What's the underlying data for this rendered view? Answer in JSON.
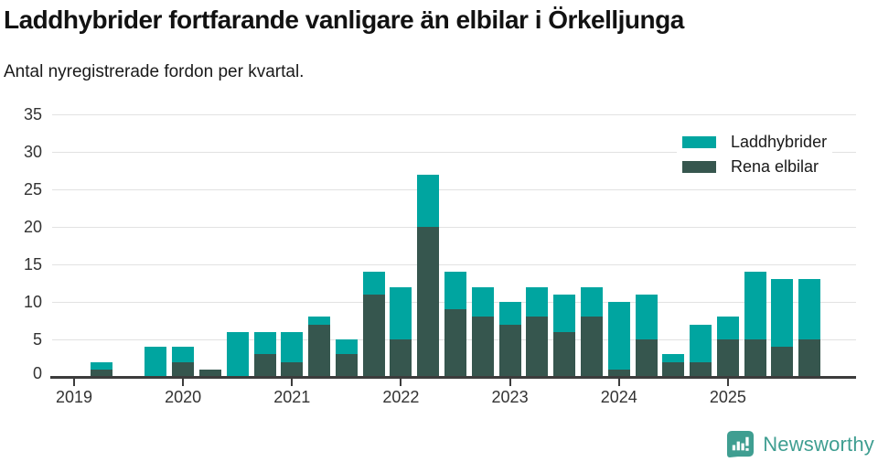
{
  "header": {
    "title": "Laddhybrider fortfarande vanligare än elbilar i Örkelljunga",
    "subtitle": "Antal nyregistrerade fordon per kvartal."
  },
  "footer": {
    "brand": "Newsworthy",
    "brand_color": "#3f9e91",
    "logo_icon": "newsworthy-speech-bubble-bar-chart-icon"
  },
  "chart_data": {
    "type": "bar",
    "stacked": true,
    "title": "Laddhybrider fortfarande vanligare än elbilar i Örkelljunga",
    "subtitle": "Antal nyregistrerade fordon per kvartal.",
    "x": [
      "2019 Q1",
      "2019 Q2",
      "2019 Q3",
      "2019 Q4",
      "2020 Q1",
      "2020 Q2",
      "2020 Q3",
      "2020 Q4",
      "2021 Q1",
      "2021 Q2",
      "2021 Q3",
      "2021 Q4",
      "2022 Q1",
      "2022 Q2",
      "2022 Q3",
      "2022 Q4",
      "2023 Q1",
      "2023 Q2",
      "2023 Q3",
      "2023 Q4",
      "2024 Q1",
      "2024 Q2",
      "2024 Q3",
      "2024 Q4",
      "2025 Q1",
      "2025 Q2",
      "2025 Q3",
      "2025 Q4"
    ],
    "x_tick_labels": [
      "2019",
      "2020",
      "2021",
      "2022",
      "2023",
      "2024",
      "2025"
    ],
    "y_ticks": [
      0,
      5,
      10,
      15,
      20,
      25,
      30,
      35
    ],
    "ylim": [
      0,
      35
    ],
    "grid": "horizontal",
    "legend_position": "top-right",
    "series": [
      {
        "name": "Laddhybrider",
        "color": "#00a5a0",
        "stack_position": "top",
        "values": [
          0,
          1,
          0,
          4,
          2,
          0,
          6,
          3,
          4,
          1,
          2,
          3,
          7,
          7,
          5,
          4,
          3,
          4,
          5,
          4,
          9,
          6,
          1,
          5,
          3,
          9,
          9,
          8
        ]
      },
      {
        "name": "Rena elbilar",
        "color": "#36564e",
        "stack_position": "bottom",
        "values": [
          0,
          1,
          0,
          0,
          2,
          1,
          0,
          3,
          2,
          7,
          3,
          11,
          5,
          20,
          9,
          8,
          7,
          8,
          6,
          8,
          1,
          5,
          2,
          2,
          5,
          5,
          4,
          5
        ]
      }
    ],
    "totals": [
      0,
      2,
      0,
      4,
      4,
      1,
      6,
      6,
      6,
      8,
      5,
      14,
      12,
      27,
      14,
      12,
      10,
      12,
      11,
      12,
      10,
      11,
      3,
      7,
      8,
      14,
      13,
      13
    ]
  }
}
